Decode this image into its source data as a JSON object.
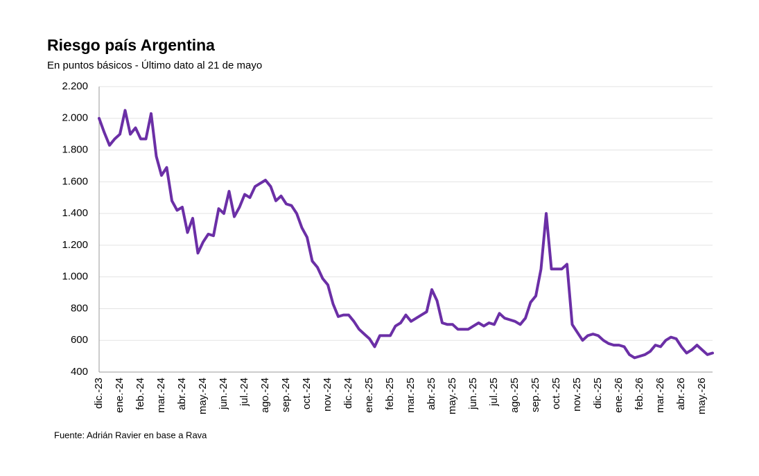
{
  "chart_data": {
    "type": "line",
    "title": "Riesgo país Argentina",
    "subtitle": "En puntos básicos - Último dato al 21 de mayo",
    "source": "Fuente: Adrián Ravier en base a Rava",
    "color": "#6b2fa6",
    "grid": true,
    "ylim": [
      400,
      2200
    ],
    "yticks": [
      400,
      600,
      800,
      {
        "value": 1000,
        "label": "1.000"
      },
      {
        "value": 1200,
        "label": "1.200"
      },
      {
        "value": 1400,
        "label": "1.400"
      },
      {
        "value": 1600,
        "label": "1.600"
      },
      {
        "value": 1800,
        "label": "1.800"
      },
      {
        "value": 2000,
        "label": "2.000"
      },
      {
        "value": 2200,
        "label": "2.200"
      }
    ],
    "categories": [
      "dic.-23",
      null,
      null,
      null,
      "ene.-24",
      null,
      null,
      null,
      "feb.-24",
      null,
      null,
      null,
      "mar.-24",
      null,
      null,
      null,
      "abr.-24",
      null,
      null,
      null,
      "may.-24",
      null,
      null,
      null,
      "jun.-24",
      null,
      null,
      null,
      "jul.-24",
      null,
      null,
      null,
      "ago.-24",
      null,
      null,
      null,
      "sep.-24",
      null,
      null,
      null,
      "oct.-24",
      null,
      null,
      null,
      "nov.-24",
      null,
      null,
      null,
      "dic.-24",
      null,
      null,
      null,
      "ene.-25",
      null,
      null,
      null,
      "feb.-25",
      null,
      null,
      null,
      "mar.-25",
      null,
      null,
      null,
      "abr.-25",
      null,
      null,
      null,
      "may.-25",
      null,
      null,
      null,
      "jun.-25",
      null,
      null,
      null,
      "jul.-25",
      null,
      null,
      null,
      "ago.-25",
      null,
      null,
      null,
      "sep.-25",
      null,
      null,
      null,
      "oct.-25",
      null,
      null,
      null,
      "nov.-25",
      null,
      null,
      null,
      "dic.-25",
      null,
      null,
      null,
      "ene.-26",
      null,
      null,
      null,
      "feb.-26",
      null,
      null,
      null,
      "mar.-26",
      null,
      null,
      null,
      "abr.-26",
      null,
      null,
      null,
      "may.-26",
      null,
      null
    ],
    "values": [
      2000,
      1910,
      1830,
      1870,
      1900,
      2050,
      1900,
      1940,
      1870,
      1870,
      2030,
      1760,
      1640,
      1690,
      1480,
      1420,
      1440,
      1280,
      1370,
      1150,
      1220,
      1270,
      1260,
      1430,
      1400,
      1540,
      1380,
      1440,
      1520,
      1500,
      1570,
      1590,
      1610,
      1570,
      1480,
      1510,
      1460,
      1450,
      1400,
      1310,
      1250,
      1100,
      1060,
      990,
      950,
      830,
      750,
      760,
      760,
      720,
      670,
      640,
      610,
      560,
      630,
      630,
      630,
      690,
      710,
      760,
      720,
      740,
      760,
      780,
      920,
      850,
      710,
      700,
      700,
      670,
      670,
      670,
      690,
      710,
      690,
      710,
      700,
      770,
      740,
      730,
      720,
      700,
      740,
      840,
      880,
      1050,
      1400,
      1050,
      1050,
      1050,
      1080,
      700,
      650,
      600,
      630,
      640,
      630,
      600,
      580,
      570,
      570,
      560,
      510,
      490,
      500,
      510,
      530,
      570,
      560,
      600,
      620,
      610,
      560,
      520,
      540,
      570,
      540,
      510,
      520
    ]
  }
}
